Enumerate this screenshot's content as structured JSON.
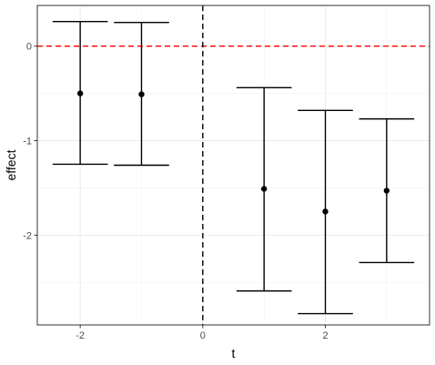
{
  "chart_data": {
    "type": "errorbar",
    "xlabel": "t",
    "ylabel": "effect",
    "xlim": [
      -2.7,
      3.7
    ],
    "ylim": [
      -2.95,
      0.43
    ],
    "x_ticks": [
      -2,
      0,
      2
    ],
    "y_ticks": [
      0,
      -1,
      -2
    ],
    "x_tick_labels": [
      "-2",
      "0",
      "2"
    ],
    "y_tick_labels": [
      "0",
      "-1",
      "-2"
    ],
    "grid": true,
    "points": [
      {
        "x": -2,
        "y": -0.5,
        "lower": -1.25,
        "upper": 0.26
      },
      {
        "x": -1,
        "y": -0.51,
        "lower": -1.26,
        "upper": 0.25
      },
      {
        "x": 1,
        "y": -1.51,
        "lower": -2.59,
        "upper": -0.44
      },
      {
        "x": 2,
        "y": -1.75,
        "lower": -2.83,
        "upper": -0.68
      },
      {
        "x": 3,
        "y": -1.53,
        "lower": -2.29,
        "upper": -0.77
      }
    ],
    "reference_lines": [
      {
        "axis": "y",
        "value": 0,
        "color": "#ff0000",
        "style": "dashed"
      },
      {
        "axis": "x",
        "value": 0,
        "color": "#000000",
        "style": "dashed"
      }
    ]
  }
}
